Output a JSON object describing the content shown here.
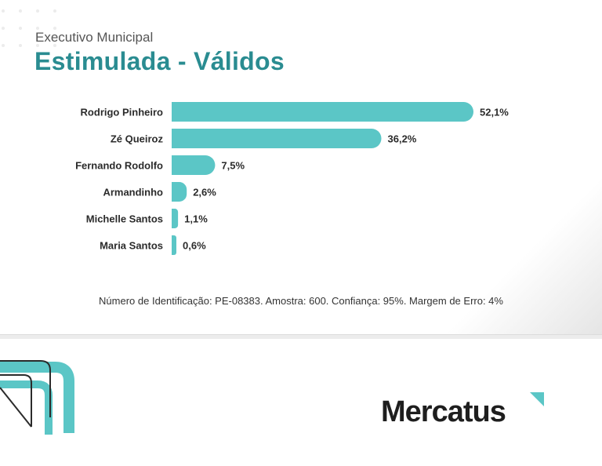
{
  "header": {
    "subtitle": "Executivo Municipal",
    "title": "Estimulada - Válidos"
  },
  "chart_data": {
    "type": "bar",
    "orientation": "horizontal",
    "categories": [
      "Rodrigo Pinheiro",
      "Zé Queiroz",
      "Fernando Rodolfo",
      "Armandinho",
      "Michelle Santos",
      "Maria Santos"
    ],
    "values": [
      52.1,
      36.2,
      7.5,
      2.6,
      1.1,
      0.6
    ],
    "value_labels": [
      "52,1%",
      "36,2%",
      "7,5%",
      "2,6%",
      "1,1%",
      "0,6%"
    ],
    "bar_color": "#5bc6c6",
    "grid": false,
    "legend": "none"
  },
  "footnote": "Número de Identificação: PE-08383. Amostra: 600. Confiança: 95%. Margem de Erro: 4%",
  "brand": {
    "name": "Mercatus",
    "accent": "#5bc6c6",
    "title_color": "#2a8c91",
    "mark_icon": "triangle-corner-icon",
    "deco_icon": "chevron-stripes-icon"
  }
}
